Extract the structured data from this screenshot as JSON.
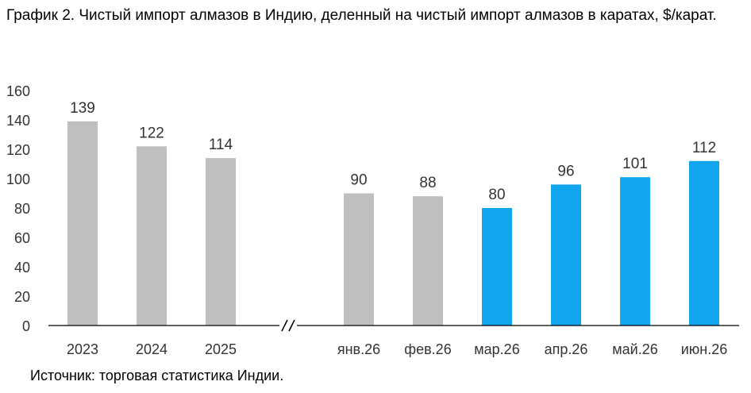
{
  "title": "График 2. Чистый импорт алмазов в Индию, деленный на чистый импорт алмазов в каратах, $/карат.",
  "source": "Источник: торговая статистика Индии.",
  "colors": {
    "gray": "#bfbfbf",
    "blue": "#12a6ef",
    "axis": "#000000",
    "text": "#333333"
  },
  "chart_data": {
    "type": "bar",
    "title": "График 2. Чистый импорт алмазов в Индию, деленный на чистый импорт алмазов в каратах, $/карат.",
    "xlabel": "",
    "ylabel": "",
    "ylim": [
      0,
      160
    ],
    "yticks": [
      0,
      20,
      40,
      60,
      80,
      100,
      120,
      140,
      160
    ],
    "grid": false,
    "legend": "none",
    "axis_break": "//",
    "categories": [
      "2023",
      "2024",
      "2025",
      "янв.26",
      "фев.26",
      "мар.26",
      "апр.26",
      "май.26",
      "июн.26"
    ],
    "values": [
      139,
      122,
      114,
      90,
      88,
      80,
      96,
      101,
      112
    ],
    "bar_colors": [
      "gray",
      "gray",
      "gray",
      "gray",
      "gray",
      "blue",
      "blue",
      "blue",
      "blue"
    ],
    "data_labels": [
      "139",
      "122",
      "114",
      "90",
      "88",
      "80",
      "96",
      "101",
      "112"
    ]
  }
}
